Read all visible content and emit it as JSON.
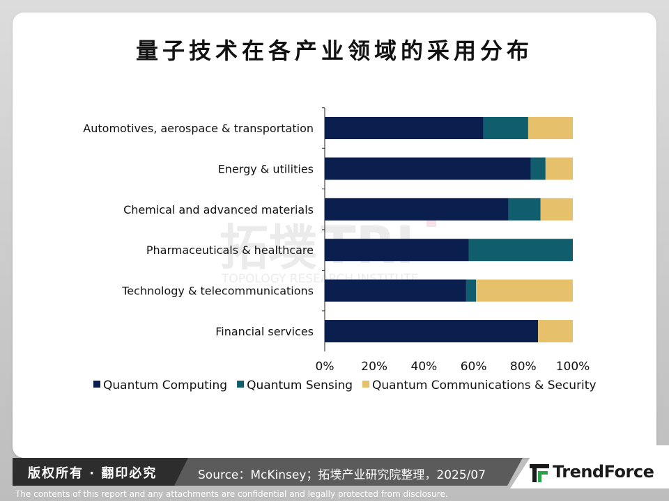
{
  "title": "量子技术在各产业领域的采用分布",
  "chart_data": {
    "type": "bar",
    "orientation": "horizontal",
    "stacked": true,
    "categories": [
      "Automotives, aerospace & transportation",
      "Energy & utilities",
      "Chemical and advanced materials",
      "Pharmaceuticals & healthcare",
      "Technology & telecommunications",
      "Financial services"
    ],
    "series": [
      {
        "name": "Quantum Computing",
        "color": "#0b1f4f",
        "values": [
          64,
          83,
          74,
          58,
          57,
          86
        ]
      },
      {
        "name": "Quantum Sensing",
        "color": "#105e6d",
        "values": [
          18,
          6,
          13,
          42,
          4,
          0
        ]
      },
      {
        "name": "Quantum Communications & Security",
        "color": "#e6c06b",
        "values": [
          18,
          11,
          13,
          0,
          39,
          14
        ]
      }
    ],
    "xlim": [
      0,
      100
    ],
    "xticks": [
      "0%",
      "20%",
      "40%",
      "60%",
      "80%",
      "100%"
    ],
    "xlabel": "",
    "ylabel": "",
    "grid": false,
    "legend": "bottom"
  },
  "watermark": {
    "cn": "拓墣",
    "en": "TOPOLOGY RESEARCH INSTITUTE",
    "mark": "TRI"
  },
  "footer": {
    "copyright": "版权所有 · 翻印必究",
    "source": "Source：McKinsey；拓墣产业研究院整理，2025/07",
    "logo": "TrendForce",
    "disclaimer": "The contents of this report and any attachments are confidential and legally protected from disclosure."
  }
}
